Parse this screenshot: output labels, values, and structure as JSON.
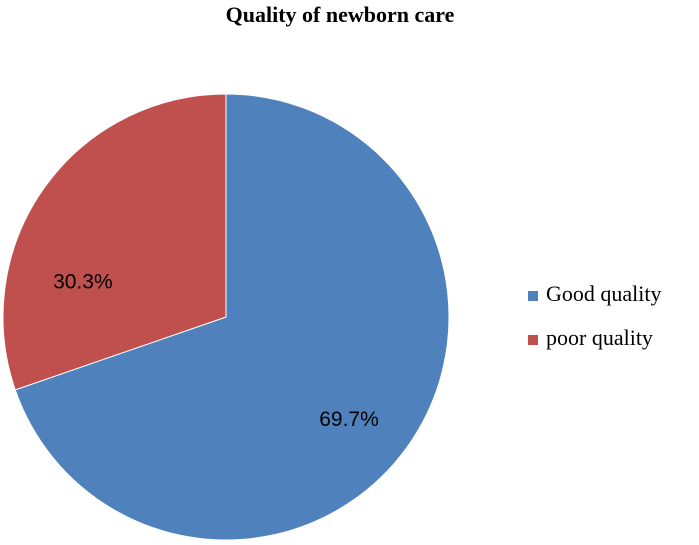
{
  "chart_data": {
    "type": "pie",
    "title": "Quality of newborn care",
    "categories": [
      "Good quality",
      "poor quality"
    ],
    "values": [
      69.7,
      30.3
    ],
    "labels": [
      "69.7%",
      "30.3%"
    ],
    "colors": [
      "#4f81bd",
      "#c0504d"
    ],
    "legend_position": "right"
  }
}
